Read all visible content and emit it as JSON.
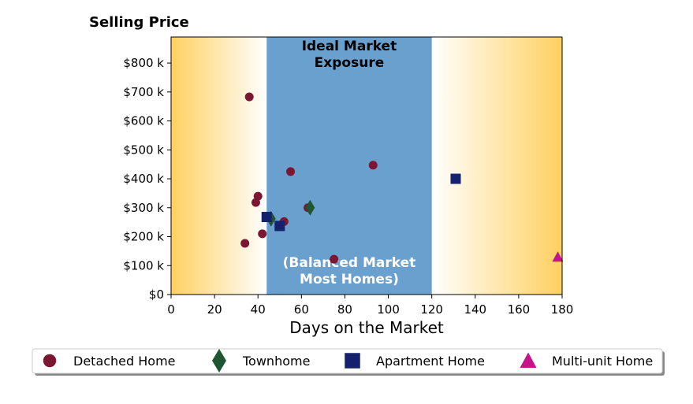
{
  "chart_data": {
    "type": "scatter",
    "title": "Selling Price",
    "xlabel": "Days on the Market",
    "ylabel": "",
    "xlim": [
      0,
      180
    ],
    "ylim": [
      0,
      890000
    ],
    "xticks": [
      0,
      20,
      40,
      60,
      80,
      100,
      120,
      140,
      160,
      180
    ],
    "yticks": [
      0,
      100000,
      200000,
      300000,
      400000,
      500000,
      600000,
      700000,
      800000
    ],
    "ytick_labels": [
      "$0",
      "$100 k",
      "$200 k",
      "$300 k",
      "$400 k",
      "$500 k",
      "$600 k",
      "$700 k",
      "$800 k"
    ],
    "grid": false,
    "bands": [
      {
        "range": [
          44,
          120
        ],
        "color": "#6aa0cd",
        "label_top": [
          "Ideal Market",
          "Exposure"
        ],
        "label_bottom": [
          "(Balanced Market",
          "Most Homes)"
        ]
      }
    ],
    "gradient_color": "#ffd060",
    "legend_position": "bottom",
    "series": [
      {
        "name": "Detached Home",
        "marker": "circle",
        "color": "#7b1733",
        "points": [
          {
            "x": 36,
            "y": 683000
          },
          {
            "x": 55,
            "y": 425000
          },
          {
            "x": 93,
            "y": 447000
          },
          {
            "x": 40,
            "y": 340000
          },
          {
            "x": 39,
            "y": 318000
          },
          {
            "x": 63,
            "y": 300000
          },
          {
            "x": 52,
            "y": 252000
          },
          {
            "x": 42,
            "y": 210000
          },
          {
            "x": 34,
            "y": 177000
          },
          {
            "x": 75,
            "y": 122000
          }
        ]
      },
      {
        "name": "Townhome",
        "marker": "diamond",
        "color": "#1e5631",
        "points": [
          {
            "x": 64,
            "y": 300000
          },
          {
            "x": 46,
            "y": 262000
          }
        ]
      },
      {
        "name": "Apartment Home",
        "marker": "square",
        "color": "#14226e",
        "points": [
          {
            "x": 131,
            "y": 400000
          },
          {
            "x": 44,
            "y": 268000
          },
          {
            "x": 50,
            "y": 237000
          }
        ]
      },
      {
        "name": "Multi-unit Home",
        "marker": "triangle",
        "color": "#c7138a",
        "points": [
          {
            "x": 178,
            "y": 130000
          }
        ]
      }
    ]
  }
}
